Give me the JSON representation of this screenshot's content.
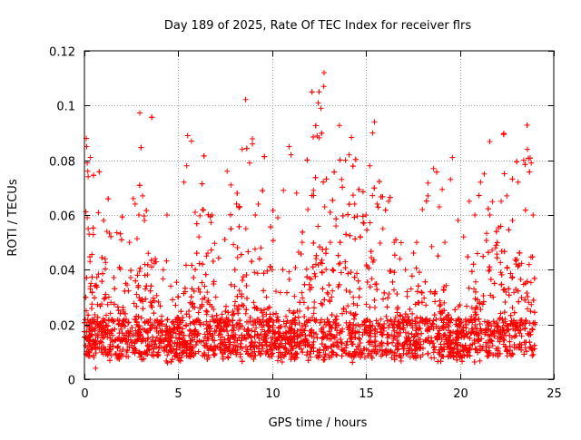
{
  "chart_data": {
    "type": "scatter",
    "title": "Day 189 of 2025, Rate Of TEC Index for receiver flrs",
    "xlabel": "GPS time / hours",
    "ylabel": "ROTI / TECUs",
    "xlim": [
      0,
      25
    ],
    "ylim": [
      0,
      0.12
    ],
    "x_ticks": [
      0,
      5,
      10,
      15,
      20,
      25
    ],
    "y_ticks": [
      0,
      0.02,
      0.04,
      0.06,
      0.08,
      0.1,
      0.12
    ],
    "x_tick_labels": [
      "0",
      "5",
      "10",
      "15",
      "20",
      "25"
    ],
    "y_tick_labels": [
      "0",
      "0.02",
      "0.04",
      "0.06",
      "0.08",
      "0.1",
      "0.12"
    ],
    "grid": true,
    "marker": "+",
    "color": "#ff0000",
    "series": [
      {
        "name": "ROTI",
        "points": [
          [
            0.1,
            0.088
          ],
          [
            0.12,
            0.085
          ],
          [
            0.15,
            0.079
          ],
          [
            0.18,
            0.076
          ],
          [
            0.2,
            0.074
          ],
          [
            0.15,
            0.059
          ],
          [
            0.2,
            0.055
          ],
          [
            0.25,
            0.053
          ],
          [
            0.3,
            0.043
          ],
          [
            0.35,
            0.035
          ],
          [
            0.1,
            0.025
          ],
          [
            0.3,
            0.013
          ],
          [
            0.5,
            0.008
          ],
          [
            0.6,
            0.004
          ],
          [
            0.8,
            0.018
          ],
          [
            1.0,
            0.022
          ],
          [
            1.1,
            0.044
          ],
          [
            1.2,
            0.054
          ],
          [
            1.3,
            0.03
          ],
          [
            1.5,
            0.016
          ],
          [
            1.8,
            0.012
          ],
          [
            2.0,
            0.02
          ],
          [
            2.2,
            0.035
          ],
          [
            2.4,
            0.05
          ],
          [
            2.6,
            0.066
          ],
          [
            2.7,
            0.064
          ],
          [
            2.9,
            0.06
          ],
          [
            3.1,
            0.067
          ],
          [
            3.2,
            0.058
          ],
          [
            3.4,
            0.046
          ],
          [
            3.6,
            0.028
          ],
          [
            3.8,
            0.014
          ],
          [
            4.0,
            0.02
          ],
          [
            4.2,
            0.04
          ],
          [
            4.4,
            0.06
          ],
          [
            4.6,
            0.034
          ],
          [
            4.8,
            0.018
          ],
          [
            5.0,
            0.03
          ],
          [
            5.3,
            0.072
          ],
          [
            5.45,
            0.078
          ],
          [
            5.5,
            0.089
          ],
          [
            5.7,
            0.087
          ],
          [
            5.9,
            0.061
          ],
          [
            6.1,
            0.052
          ],
          [
            6.3,
            0.062
          ],
          [
            6.5,
            0.045
          ],
          [
            6.8,
            0.06
          ],
          [
            7.0,
            0.03
          ],
          [
            7.3,
            0.018
          ],
          [
            7.6,
            0.076
          ],
          [
            7.8,
            0.071
          ],
          [
            8.1,
            0.064
          ],
          [
            8.4,
            0.084
          ],
          [
            8.6,
            0.055
          ],
          [
            8.8,
            0.079
          ],
          [
            8.95,
            0.086
          ],
          [
            9.1,
            0.06
          ],
          [
            9.4,
            0.048
          ],
          [
            9.7,
            0.03
          ],
          [
            10.0,
            0.04
          ],
          [
            10.3,
            0.059
          ],
          [
            10.6,
            0.069
          ],
          [
            10.9,
            0.085
          ],
          [
            11.0,
            0.082
          ],
          [
            11.3,
            0.068
          ],
          [
            11.6,
            0.05
          ],
          [
            11.9,
            0.062
          ],
          [
            12.2,
            0.069
          ],
          [
            12.45,
            0.101
          ],
          [
            12.5,
            0.105
          ],
          [
            12.6,
            0.099
          ],
          [
            12.8,
            0.063
          ],
          [
            13.1,
            0.05
          ],
          [
            13.4,
            0.056
          ],
          [
            13.7,
            0.073
          ],
          [
            13.9,
            0.08
          ],
          [
            14.1,
            0.082
          ],
          [
            14.4,
            0.064
          ],
          [
            14.7,
            0.052
          ],
          [
            15.0,
            0.06
          ],
          [
            15.2,
            0.078
          ],
          [
            15.35,
            0.09
          ],
          [
            15.45,
            0.094
          ],
          [
            15.6,
            0.064
          ],
          [
            15.9,
            0.055
          ],
          [
            16.2,
            0.065
          ],
          [
            16.5,
            0.05
          ],
          [
            16.8,
            0.044
          ],
          [
            17.1,
            0.04
          ],
          [
            17.4,
            0.033
          ],
          [
            17.7,
            0.05
          ],
          [
            18.0,
            0.062
          ],
          [
            18.3,
            0.067
          ],
          [
            18.6,
            0.077
          ],
          [
            18.9,
            0.063
          ],
          [
            19.2,
            0.05
          ],
          [
            19.5,
            0.073
          ],
          [
            19.6,
            0.081
          ],
          [
            19.9,
            0.058
          ],
          [
            20.2,
            0.052
          ],
          [
            20.5,
            0.065
          ],
          [
            20.8,
            0.06
          ],
          [
            21.1,
            0.072
          ],
          [
            21.3,
            0.075
          ],
          [
            21.6,
            0.06
          ],
          [
            21.9,
            0.048
          ],
          [
            22.2,
            0.065
          ],
          [
            22.5,
            0.067
          ],
          [
            22.8,
            0.058
          ],
          [
            23.1,
            0.072
          ],
          [
            23.4,
            0.08
          ],
          [
            23.6,
            0.084
          ],
          [
            23.8,
            0.079
          ],
          [
            23.9,
            0.06
          ],
          [
            24.0,
            0.02
          ]
        ]
      }
    ]
  }
}
